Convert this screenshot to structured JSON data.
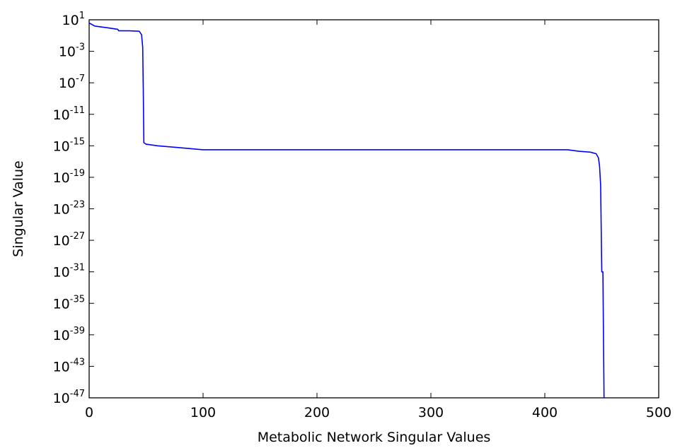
{
  "chart_data": {
    "type": "line",
    "title": "",
    "xlabel": "Metabolic Network Singular Values",
    "ylabel": "Singular Value",
    "xlim": [
      0,
      500
    ],
    "ylim_log10": [
      -47,
      1
    ],
    "yscale": "log",
    "grid": false,
    "legend": "none",
    "x_ticks": [
      {
        "value": 0,
        "label": "0"
      },
      {
        "value": 100,
        "label": "100"
      },
      {
        "value": 200,
        "label": "200"
      },
      {
        "value": 300,
        "label": "300"
      },
      {
        "value": 400,
        "label": "400"
      },
      {
        "value": 500,
        "label": "500"
      }
    ],
    "y_ticks": [
      {
        "value_log10": 1,
        "base": "10",
        "exp": "1"
      },
      {
        "value_log10": -3,
        "base": "10",
        "exp": "-3"
      },
      {
        "value_log10": -7,
        "base": "10",
        "exp": "-7"
      },
      {
        "value_log10": -11,
        "base": "10",
        "exp": "-11"
      },
      {
        "value_log10": -15,
        "base": "10",
        "exp": "-15"
      },
      {
        "value_log10": -19,
        "base": "10",
        "exp": "-19"
      },
      {
        "value_log10": -23,
        "base": "10",
        "exp": "-23"
      },
      {
        "value_log10": -27,
        "base": "10",
        "exp": "-27"
      },
      {
        "value_log10": -31,
        "base": "10",
        "exp": "-31"
      },
      {
        "value_log10": -35,
        "base": "10",
        "exp": "-35"
      },
      {
        "value_log10": -39,
        "base": "10",
        "exp": "-39"
      },
      {
        "value_log10": -43,
        "base": "10",
        "exp": "-43"
      },
      {
        "value_log10": -47,
        "base": "10",
        "exp": "-47"
      }
    ],
    "series": [
      {
        "color": "#0000ff",
        "points_log10": [
          [
            0,
            0.6
          ],
          [
            5,
            0.2
          ],
          [
            15,
            0.0
          ],
          [
            25,
            -0.2
          ],
          [
            26,
            -0.4
          ],
          [
            35,
            -0.4
          ],
          [
            44,
            -0.45
          ],
          [
            46,
            -0.9
          ],
          [
            47,
            -2.5
          ],
          [
            47.5,
            -8
          ],
          [
            48,
            -14.6
          ],
          [
            50,
            -14.8
          ],
          [
            60,
            -15.0
          ],
          [
            80,
            -15.25
          ],
          [
            100,
            -15.5
          ],
          [
            200,
            -15.5
          ],
          [
            300,
            -15.5
          ],
          [
            400,
            -15.5
          ],
          [
            420,
            -15.5
          ],
          [
            430,
            -15.7
          ],
          [
            440,
            -15.8
          ],
          [
            445,
            -16.0
          ],
          [
            447,
            -16.5
          ],
          [
            448,
            -17.5
          ],
          [
            449,
            -20
          ],
          [
            450,
            -31.0
          ],
          [
            451,
            -31.0
          ],
          [
            452,
            -47.0
          ]
        ]
      }
    ]
  }
}
